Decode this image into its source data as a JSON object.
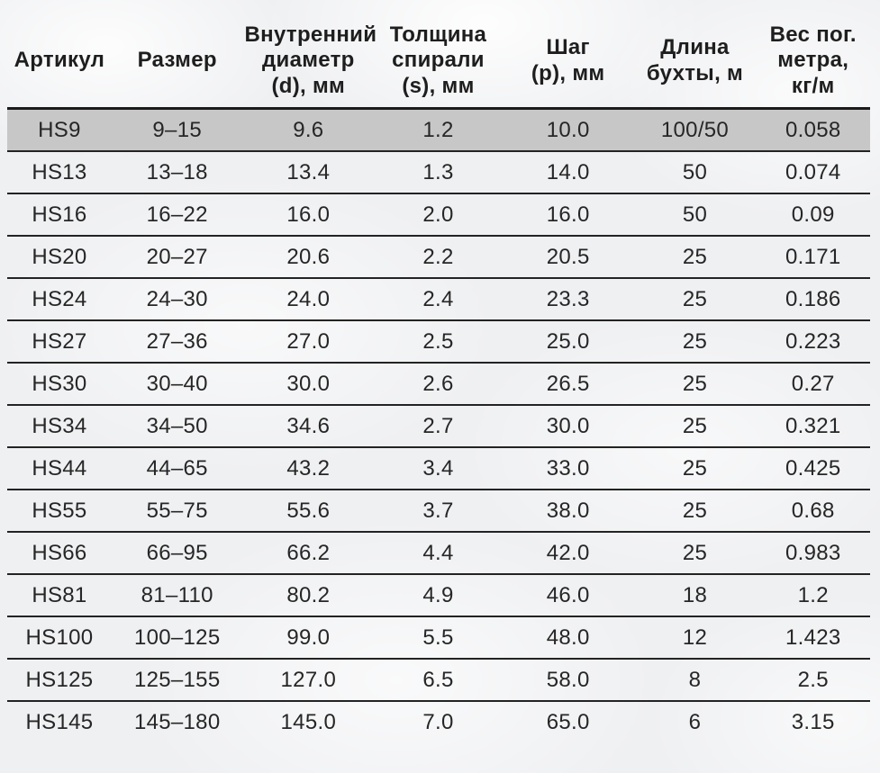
{
  "table": {
    "columns": [
      {
        "id": "article",
        "label": "Артикул"
      },
      {
        "id": "size",
        "label": "Размер"
      },
      {
        "id": "inner-diameter",
        "label": "Внутренний\nдиаметр\n(d), мм"
      },
      {
        "id": "spiral-thickness",
        "label": "Толщина\nспирали\n(s), мм"
      },
      {
        "id": "pitch",
        "label": "Шаг\n(p), мм"
      },
      {
        "id": "coil-length",
        "label": "Длина\nбухты, м"
      },
      {
        "id": "weight-per-meter",
        "label": "Вес пог.\nметра,\nкг/м"
      }
    ],
    "highlighted_row_index": 0,
    "rows": [
      [
        "HS9",
        "9–15",
        "9.6",
        "1.2",
        "10.0",
        "100/50",
        "0.058"
      ],
      [
        "HS13",
        "13–18",
        "13.4",
        "1.3",
        "14.0",
        "50",
        "0.074"
      ],
      [
        "HS16",
        "16–22",
        "16.0",
        "2.0",
        "16.0",
        "50",
        "0.09"
      ],
      [
        "HS20",
        "20–27",
        "20.6",
        "2.2",
        "20.5",
        "25",
        "0.171"
      ],
      [
        "HS24",
        "24–30",
        "24.0",
        "2.4",
        "23.3",
        "25",
        "0.186"
      ],
      [
        "HS27",
        "27–36",
        "27.0",
        "2.5",
        "25.0",
        "25",
        "0.223"
      ],
      [
        "HS30",
        "30–40",
        "30.0",
        "2.6",
        "26.5",
        "25",
        "0.27"
      ],
      [
        "HS34",
        "34–50",
        "34.6",
        "2.7",
        "30.0",
        "25",
        "0.321"
      ],
      [
        "HS44",
        "44–65",
        "43.2",
        "3.4",
        "33.0",
        "25",
        "0.425"
      ],
      [
        "HS55",
        "55–75",
        "55.6",
        "3.7",
        "38.0",
        "25",
        "0.68"
      ],
      [
        "HS66",
        "66–95",
        "66.2",
        "4.4",
        "42.0",
        "25",
        "0.983"
      ],
      [
        "HS81",
        "81–110",
        "80.2",
        "4.9",
        "46.0",
        "18",
        "1.2"
      ],
      [
        "HS100",
        "100–125",
        "99.0",
        "5.5",
        "48.0",
        "12",
        "1.423"
      ],
      [
        "HS125",
        "125–155",
        "127.0",
        "6.5",
        "58.0",
        "8",
        "2.5"
      ],
      [
        "HS145",
        "145–180",
        "145.0",
        "7.0",
        "65.0",
        "6",
        "3.15"
      ]
    ],
    "colors": {
      "page_bg": "#eff0f2",
      "highlight_row_bg": "#c7c7c7",
      "border": "#232323",
      "text": "#262626"
    }
  }
}
